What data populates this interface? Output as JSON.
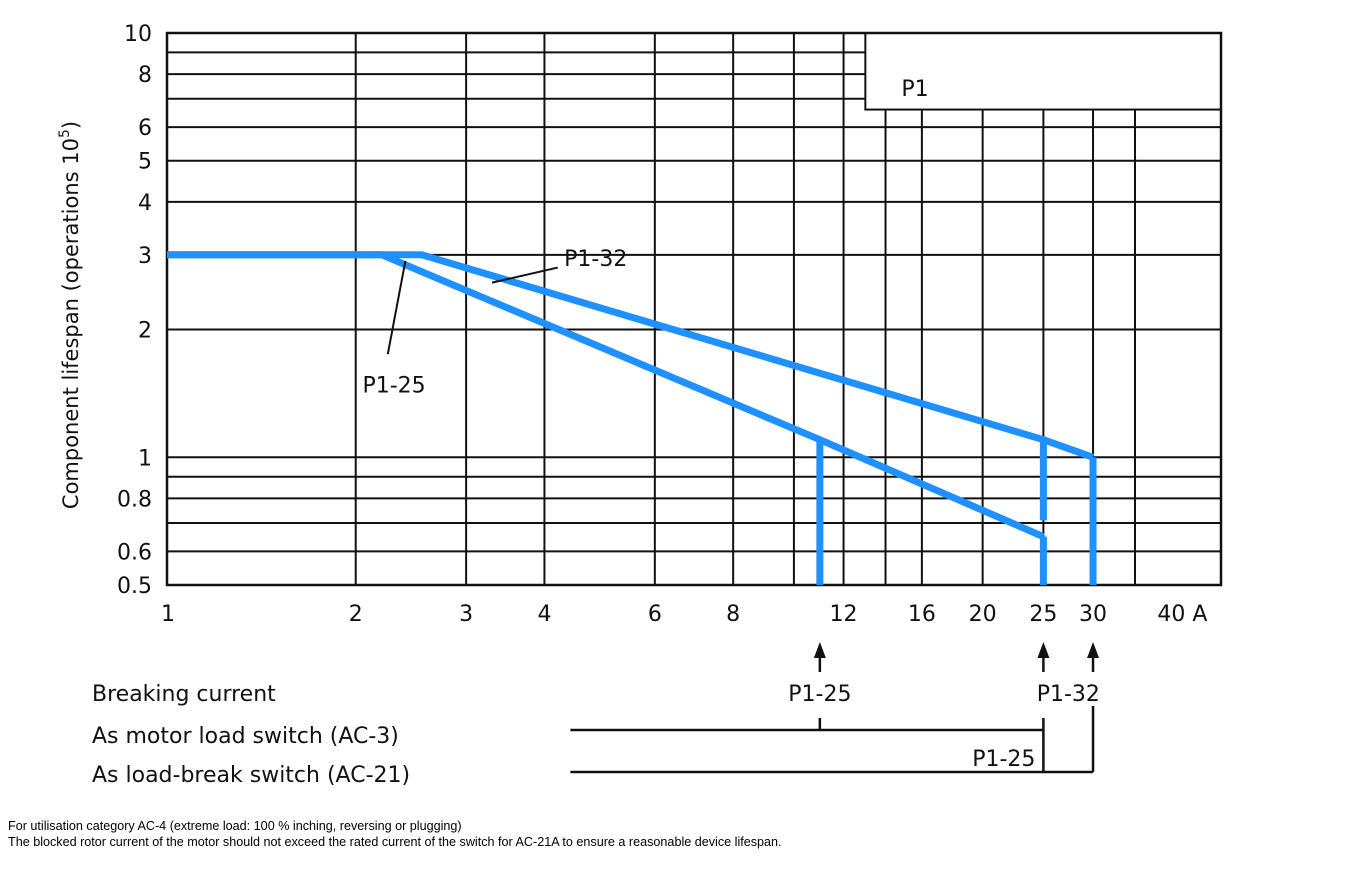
{
  "chart_data": {
    "type": "line",
    "xscale": "log",
    "yscale": "log",
    "xlim": [
      1,
      48
    ],
    "ylim": [
      0.5,
      10
    ],
    "x_tick_labels": [
      {
        "value": 1,
        "label": "1"
      },
      {
        "value": 2,
        "label": "2"
      },
      {
        "value": 3,
        "label": "3"
      },
      {
        "value": 4,
        "label": "4"
      },
      {
        "value": 6,
        "label": "6"
      },
      {
        "value": 8,
        "label": "8"
      },
      {
        "value": 12,
        "label": "12"
      },
      {
        "value": 16,
        "label": "16"
      },
      {
        "value": 20,
        "label": "20"
      },
      {
        "value": 25,
        "label": "25"
      },
      {
        "value": 30,
        "label": "30"
      },
      {
        "value": 40,
        "label": "40 A"
      }
    ],
    "x_gridlines": [
      2,
      3,
      4,
      6,
      8,
      10,
      12,
      14,
      16,
      20,
      25,
      30,
      35,
      48
    ],
    "y_tick_labels": [
      {
        "value": 10,
        "label": "10"
      },
      {
        "value": 8,
        "label": "8"
      },
      {
        "value": 6,
        "label": "6"
      },
      {
        "value": 5,
        "label": "5"
      },
      {
        "value": 4,
        "label": "4"
      },
      {
        "value": 3,
        "label": "3"
      },
      {
        "value": 2,
        "label": "2"
      },
      {
        "value": 1,
        "label": "1"
      },
      {
        "value": 0.8,
        "label": "0.8"
      },
      {
        "value": 0.6,
        "label": "0.6"
      },
      {
        "value": 0.5,
        "label": "0.5"
      }
    ],
    "y_gridlines": [
      0.6,
      0.7,
      0.8,
      0.9,
      1,
      2,
      3,
      4,
      5,
      6,
      7,
      8,
      9,
      10
    ],
    "ylabel_main": "Component lifespan (operations 10",
    "ylabel_sup": "5",
    "ylabel_end": ")",
    "legend_box": {
      "label": "P1",
      "x_from": 13,
      "y_from": 6.6
    },
    "series": [
      {
        "name": "P1-32",
        "color": "#1e90ff",
        "points": [
          [
            1,
            3
          ],
          [
            2.55,
            3
          ],
          [
            25,
            1.1
          ],
          [
            30,
            1.0
          ]
        ],
        "drops": [
          [
            25,
            1.1,
            0.71
          ],
          [
            30,
            1.0,
            0.5
          ]
        ]
      },
      {
        "name": "P1-25",
        "color": "#1e90ff",
        "points": [
          [
            1,
            3
          ],
          [
            2.2,
            3
          ],
          [
            11,
            1.1
          ],
          [
            25,
            0.65
          ]
        ],
        "drops": [
          [
            11,
            1.1,
            0.5
          ],
          [
            25,
            0.65,
            0.5
          ]
        ]
      }
    ],
    "series_callouts": [
      {
        "label": "P1-32",
        "line": [
          [
            3.3,
            2.58
          ],
          [
            4.2,
            2.8
          ]
        ],
        "text_at": [
          4.3,
          2.82
        ]
      },
      {
        "label": "P1-25",
        "line": [
          [
            2.4,
            2.9
          ],
          [
            2.25,
            1.75
          ]
        ],
        "text_at": [
          2.05,
          1.42
        ]
      }
    ],
    "breaking_current": {
      "heading": "Breaking current",
      "ac3_label": "As motor load switch (AC-3)",
      "ac21_label": "As load-break switch (AC-21)",
      "arrows": [
        11,
        25,
        30
      ],
      "arrow_labels": [
        {
          "text": "P1-25",
          "x": 11
        },
        {
          "text": "P1-32",
          "x": 27.4
        }
      ],
      "inline_label": {
        "text": "P1-25",
        "x": 25
      },
      "ac3_line": {
        "from": 4.4,
        "to": 25,
        "tick_at": 11
      },
      "ac21_line": {
        "from": 4.4,
        "to": 30
      }
    }
  },
  "notes": {
    "line1": "For utilisation category AC-4 (extreme load: 100 % inching, reversing or plugging)",
    "line2": "The blocked rotor current of the motor should not exceed the rated current of the switch for AC-21A to ensure a reasonable device lifespan."
  }
}
